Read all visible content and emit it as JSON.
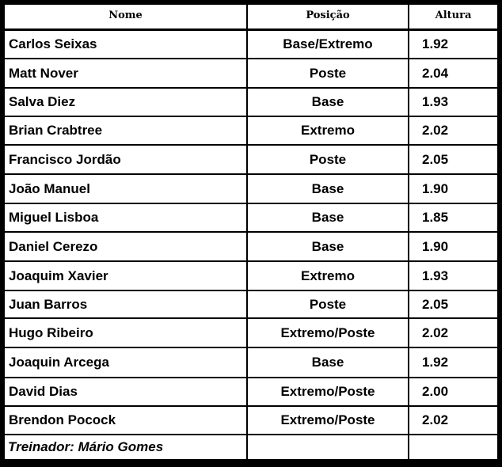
{
  "headers": {
    "name": "Nome",
    "position": "Posição",
    "height": "Altura"
  },
  "rows": [
    {
      "name": "Carlos Seixas",
      "position": "Base/Extremo",
      "height": "1.92"
    },
    {
      "name": "Matt Nover",
      "position": "Poste",
      "height": "2.04"
    },
    {
      "name": "Salva Diez",
      "position": "Base",
      "height": "1.93"
    },
    {
      "name": "Brian Crabtree",
      "position": "Extremo",
      "height": "2.02"
    },
    {
      "name": "Francisco Jordão",
      "position": "Poste",
      "height": "2.05"
    },
    {
      "name": "João Manuel",
      "position": "Base",
      "height": "1.90"
    },
    {
      "name": "Miguel Lisboa",
      "position": "Base",
      "height": "1.85"
    },
    {
      "name": "Daniel Cerezo",
      "position": "Base",
      "height": "1.90"
    },
    {
      "name": "Joaquim Xavier",
      "position": "Extremo",
      "height": "1.93"
    },
    {
      "name": "Juan Barros",
      "position": "Poste",
      "height": "2.05"
    },
    {
      "name": "Hugo Ribeiro",
      "position": "Extremo/Poste",
      "height": "2.02"
    },
    {
      "name": "Joaquin Arcega",
      "position": "Base",
      "height": "1.92"
    },
    {
      "name": "David Dias",
      "position": "Extremo/Poste",
      "height": "2.00"
    },
    {
      "name": "Brendon Pocock",
      "position": "Extremo/Poste",
      "height": "2.02"
    }
  ],
  "coach": "Treinador: Mário Gomes"
}
